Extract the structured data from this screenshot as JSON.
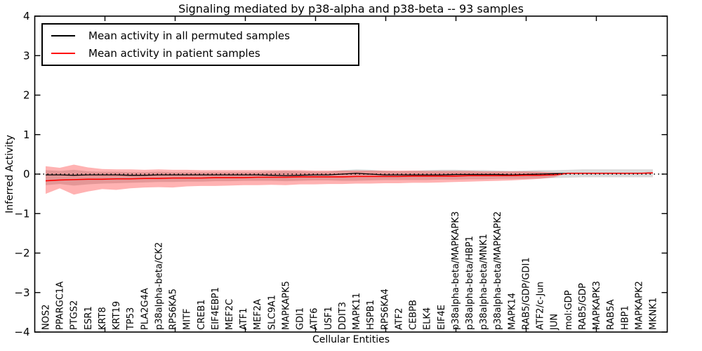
{
  "title": "Signaling mediated by p38-alpha and p38-beta -- 93 samples",
  "legend": {
    "items": [
      {
        "label": "Mean activity in all permuted samples",
        "color": "#000000"
      },
      {
        "label": "Mean activity in patient samples",
        "color": "#ff0000"
      }
    ]
  },
  "colors": {
    "permuted_line": "#000000",
    "patient_line": "#ff0000",
    "permuted_band": "#888888",
    "patient_band": "#ff0000",
    "background": "#ffffff"
  },
  "chart_data": {
    "type": "line",
    "title": "Signaling mediated by p38-alpha and p38-beta -- 93 samples",
    "xlabel": "Cellular Entities",
    "ylabel": "Inferred Activity",
    "ylim": [
      -4,
      4
    ],
    "yticks": [
      -4,
      -3,
      -2,
      -1,
      0,
      1,
      2,
      3,
      4
    ],
    "grid": false,
    "legend_position": "upper-left",
    "zero_line": 0,
    "categories": [
      "NOS2",
      "PPARGC1A",
      "PTGS2",
      "ESR1",
      "KRT8",
      "KRT19",
      "TP53",
      "PLA2G4A",
      "p38alpha-beta/CK2",
      "RPS6KA5",
      "MITF",
      "CREB1",
      "EIF4EBP1",
      "MEF2C",
      "ATF1",
      "MEF2A",
      "SLC9A1",
      "MAPKAPK5",
      "GDI1",
      "ATF6",
      "USF1",
      "DDIT3",
      "MAPK11",
      "HSPB1",
      "RPS6KA4",
      "ATF2",
      "CEBPB",
      "ELK4",
      "EIF4E",
      "p38alpha-beta/MAPKAPK3",
      "p38alpha-beta/HBP1",
      "p38alpha-beta/MNK1",
      "p38alpha-beta/MAPKAPK2",
      "MAPK14",
      "RAB5/GDP/GDI1",
      "ATF2/c-Jun",
      "JUN",
      "mol:GDP",
      "RAB5/GDP",
      "MAPKAPK3",
      "RAB5A",
      "HBP1",
      "MAPKAPK2",
      "MKNK1"
    ],
    "series": [
      {
        "name": "Mean activity in all permuted samples",
        "color": "#000000",
        "width": 1.3,
        "values": [
          -0.02,
          -0.02,
          -0.03,
          -0.02,
          -0.02,
          -0.02,
          -0.03,
          -0.03,
          -0.02,
          -0.02,
          -0.02,
          -0.02,
          -0.02,
          -0.02,
          -0.02,
          -0.02,
          -0.03,
          -0.04,
          -0.03,
          -0.02,
          -0.02,
          0.0,
          0.02,
          0.0,
          -0.02,
          -0.02,
          -0.02,
          -0.02,
          -0.02,
          -0.01,
          -0.01,
          -0.01,
          -0.01,
          -0.02,
          -0.01,
          0.0,
          0.01,
          0.02,
          0.02,
          0.02,
          0.02,
          0.02,
          0.02,
          0.03
        ]
      },
      {
        "name": "Mean activity in patient samples",
        "color": "#ff0000",
        "width": 1.6,
        "values": [
          -0.17,
          -0.15,
          -0.14,
          -0.13,
          -0.13,
          -0.12,
          -0.12,
          -0.11,
          -0.11,
          -0.1,
          -0.1,
          -0.1,
          -0.09,
          -0.09,
          -0.09,
          -0.08,
          -0.08,
          -0.08,
          -0.07,
          -0.07,
          -0.07,
          -0.07,
          -0.06,
          -0.06,
          -0.06,
          -0.06,
          -0.05,
          -0.05,
          -0.05,
          -0.05,
          -0.04,
          -0.04,
          -0.04,
          -0.04,
          -0.03,
          -0.03,
          -0.02,
          0.02,
          0.02,
          0.02,
          0.02,
          0.02,
          0.02,
          0.03
        ]
      }
    ],
    "bands": [
      {
        "name": "permuted-samples-band",
        "color": "#888888",
        "opacity": 0.32,
        "upper": [
          0.1,
          0.08,
          0.11,
          0.07,
          0.06,
          0.06,
          0.05,
          0.05,
          0.06,
          0.05,
          0.05,
          0.05,
          0.05,
          0.05,
          0.05,
          0.05,
          0.07,
          0.08,
          0.07,
          0.06,
          0.06,
          0.1,
          0.12,
          0.11,
          0.08,
          0.07,
          0.08,
          0.1,
          0.11,
          0.11,
          0.1,
          0.1,
          0.09,
          0.08,
          0.09,
          0.1,
          0.1,
          0.11,
          0.12,
          0.12,
          0.12,
          0.12,
          0.12,
          0.12
        ],
        "lower": [
          -0.28,
          -0.25,
          -0.29,
          -0.26,
          -0.24,
          -0.23,
          -0.22,
          -0.21,
          -0.2,
          -0.2,
          -0.19,
          -0.19,
          -0.18,
          -0.18,
          -0.17,
          -0.17,
          -0.17,
          -0.18,
          -0.17,
          -0.16,
          -0.16,
          -0.17,
          -0.17,
          -0.16,
          -0.15,
          -0.15,
          -0.15,
          -0.15,
          -0.14,
          -0.14,
          -0.13,
          -0.13,
          -0.12,
          -0.12,
          -0.12,
          -0.11,
          -0.1,
          -0.09,
          -0.08,
          -0.08,
          -0.08,
          -0.08,
          -0.08,
          -0.08
        ]
      },
      {
        "name": "patient-samples-band",
        "color": "#ff0000",
        "opacity": 0.3,
        "upper": [
          0.2,
          0.16,
          0.24,
          0.17,
          0.13,
          0.12,
          0.12,
          0.11,
          0.12,
          0.11,
          0.11,
          0.1,
          0.1,
          0.1,
          0.1,
          0.1,
          0.1,
          0.1,
          0.1,
          0.09,
          0.09,
          0.09,
          0.09,
          0.09,
          0.09,
          0.09,
          0.09,
          0.08,
          0.08,
          0.08,
          0.08,
          0.07,
          0.07,
          0.07,
          0.07,
          0.06,
          0.04,
          0.02,
          0.02,
          0.02,
          0.02,
          0.02,
          0.02,
          0.03
        ],
        "lower": [
          -0.5,
          -0.36,
          -0.52,
          -0.44,
          -0.38,
          -0.4,
          -0.36,
          -0.34,
          -0.33,
          -0.34,
          -0.31,
          -0.3,
          -0.3,
          -0.29,
          -0.28,
          -0.28,
          -0.27,
          -0.28,
          -0.26,
          -0.26,
          -0.25,
          -0.25,
          -0.24,
          -0.24,
          -0.23,
          -0.23,
          -0.22,
          -0.22,
          -0.21,
          -0.2,
          -0.19,
          -0.18,
          -0.17,
          -0.16,
          -0.14,
          -0.12,
          -0.08,
          0.02,
          0.02,
          0.02,
          0.02,
          0.02,
          0.02,
          0.03
        ]
      }
    ]
  }
}
